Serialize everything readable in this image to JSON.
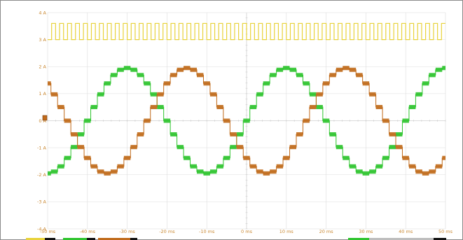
{
  "chart_data": {
    "type": "line",
    "xlabel": "",
    "ylabel": "",
    "x_unit": "ms",
    "y_unit": "A",
    "xlim": [
      -50,
      50
    ],
    "ylim": [
      -4,
      4
    ],
    "x_ticks": [
      "-50 ms",
      "-40 ms",
      "-30 ms",
      "-20 ms",
      "-10 ms",
      "0 ms",
      "10 ms",
      "20 ms",
      "30 ms",
      "40 ms",
      "50 ms"
    ],
    "y_ticks": [
      "4 A",
      "3 A",
      "2 A",
      "1 A",
      "0 A",
      "-1 A",
      "-2 A",
      "-3 A",
      "-4 A"
    ],
    "x_tick_values": [
      -50,
      -40,
      -30,
      -20,
      -10,
      0,
      10,
      20,
      30,
      40,
      50
    ],
    "y_tick_values": [
      4,
      3,
      2,
      1,
      0,
      -1,
      -2,
      -3,
      -4
    ],
    "grid": true,
    "series": [
      {
        "color": "#e8d23a",
        "kind": "square-wave",
        "low": 3.0,
        "high": 3.6,
        "period_ms": 2.0
      },
      {
        "color": "#2ec42e",
        "kind": "stepped-sine",
        "amplitude": 1.95,
        "period_ms": 40,
        "peak_at_ms": -30,
        "steps_per_period": 24
      },
      {
        "color": "#c06a1a",
        "kind": "stepped-sine",
        "amplitude": 1.95,
        "period_ms": 40,
        "peak_at_ms": -15,
        "steps_per_period": 24
      }
    ]
  }
}
